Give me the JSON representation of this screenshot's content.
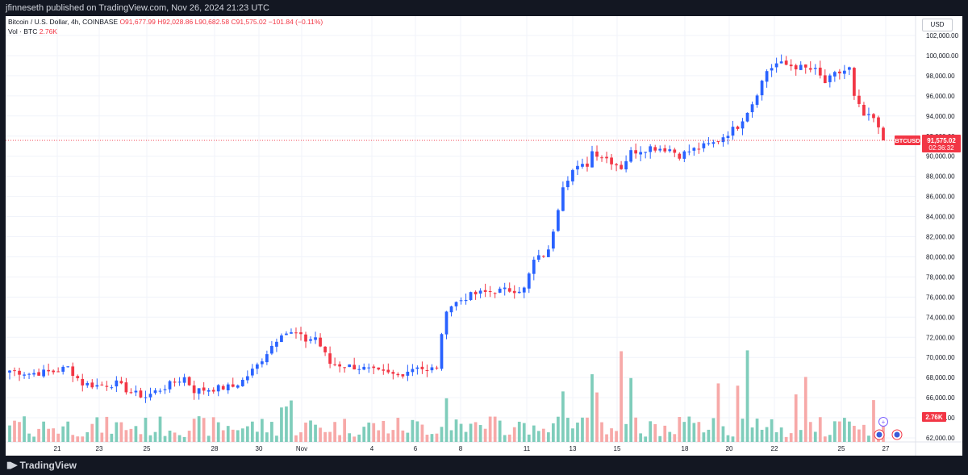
{
  "header": {
    "text": "jfinneseth published on TradingView.com, Nov 26, 2024 21:23 UTC"
  },
  "legend": {
    "symbol": "Bitcoin / U.S. Dollar, 4h, COINBASE",
    "open": "O91,677.99",
    "high": "H92,028.86",
    "low": "L90,682.58",
    "close": "C91,575.02",
    "change": "−101.84 (−0.11%)",
    "vol_label": "Vol · BTC",
    "vol_value": "2.76K"
  },
  "currency": "USD",
  "price_label": {
    "symbol": "BTCUSD",
    "price": "91,575.02",
    "countdown": "02:36:32"
  },
  "vol_badge": "2.76K",
  "footer": {
    "brand": "TradingView"
  },
  "colors": {
    "up": "#2962ff",
    "down": "#f23645",
    "vol_up": "#7fcdbb",
    "vol_down": "#f7a9a8",
    "price_line": "#f23645"
  },
  "chart_data": {
    "type": "candlestick",
    "symbol": "BTCUSD",
    "interval": "4h",
    "x_ticks": [
      "21",
      "23",
      "25",
      "28",
      "30",
      "Nov",
      "4",
      "6",
      "8",
      "11",
      "13",
      "15",
      "18",
      "20",
      "22",
      "25",
      "27"
    ],
    "y_ticks": [
      "102,000.00",
      "100,000.00",
      "98,000.00",
      "96,000.00",
      "94,000.00",
      "92,000.00",
      "90,000.00",
      "88,000.00",
      "86,000.00",
      "84,000.00",
      "82,000.00",
      "80,000.00",
      "78,000.00",
      "76,000.00",
      "74,000.00",
      "72,000.00",
      "70,000.00",
      "68,000.00",
      "66,000.00",
      "64,000.00",
      "62,000.00"
    ],
    "ylim": [
      61500,
      102800
    ],
    "last_price": 91575.02,
    "close_anchors": [
      [
        0,
        68700
      ],
      [
        4,
        68400
      ],
      [
        9,
        68600
      ],
      [
        12,
        69000
      ],
      [
        15,
        67400
      ],
      [
        18,
        67200
      ],
      [
        22,
        67400
      ],
      [
        25,
        66500
      ],
      [
        28,
        66100
      ],
      [
        30,
        66600
      ],
      [
        33,
        67300
      ],
      [
        36,
        68000
      ],
      [
        38,
        66700
      ],
      [
        40,
        66800
      ],
      [
        46,
        67100
      ],
      [
        48,
        67700
      ],
      [
        51,
        69200
      ],
      [
        56,
        72500
      ],
      [
        59,
        72300
      ],
      [
        61,
        71700
      ],
      [
        63,
        72000
      ],
      [
        66,
        69400
      ],
      [
        72,
        69000
      ],
      [
        76,
        68500
      ],
      [
        80,
        68200
      ],
      [
        84,
        69200
      ],
      [
        86,
        68600
      ],
      [
        88,
        69100
      ],
      [
        90,
        74900
      ],
      [
        94,
        76000
      ],
      [
        96,
        76300
      ],
      [
        100,
        76600
      ],
      [
        106,
        76800
      ],
      [
        108,
        79600
      ],
      [
        111,
        80500
      ],
      [
        114,
        87200
      ],
      [
        116,
        88600
      ],
      [
        119,
        89200
      ],
      [
        120,
        90500
      ],
      [
        123,
        89800
      ],
      [
        126,
        88900
      ],
      [
        128,
        90400
      ],
      [
        132,
        90900
      ],
      [
        136,
        90700
      ],
      [
        138,
        90100
      ],
      [
        140,
        90500
      ],
      [
        145,
        91300
      ],
      [
        150,
        93000
      ],
      [
        153,
        95300
      ],
      [
        156,
        98500
      ],
      [
        158,
        99200
      ],
      [
        161,
        99000
      ],
      [
        164,
        98700
      ],
      [
        166,
        98500
      ],
      [
        168,
        97300
      ],
      [
        170,
        98100
      ],
      [
        173,
        98700
      ],
      [
        174,
        95800
      ],
      [
        176,
        94000
      ],
      [
        178,
        93700
      ],
      [
        180,
        91575
      ]
    ],
    "volume_note": "BTC volume histogram; last bar 2.76K"
  }
}
